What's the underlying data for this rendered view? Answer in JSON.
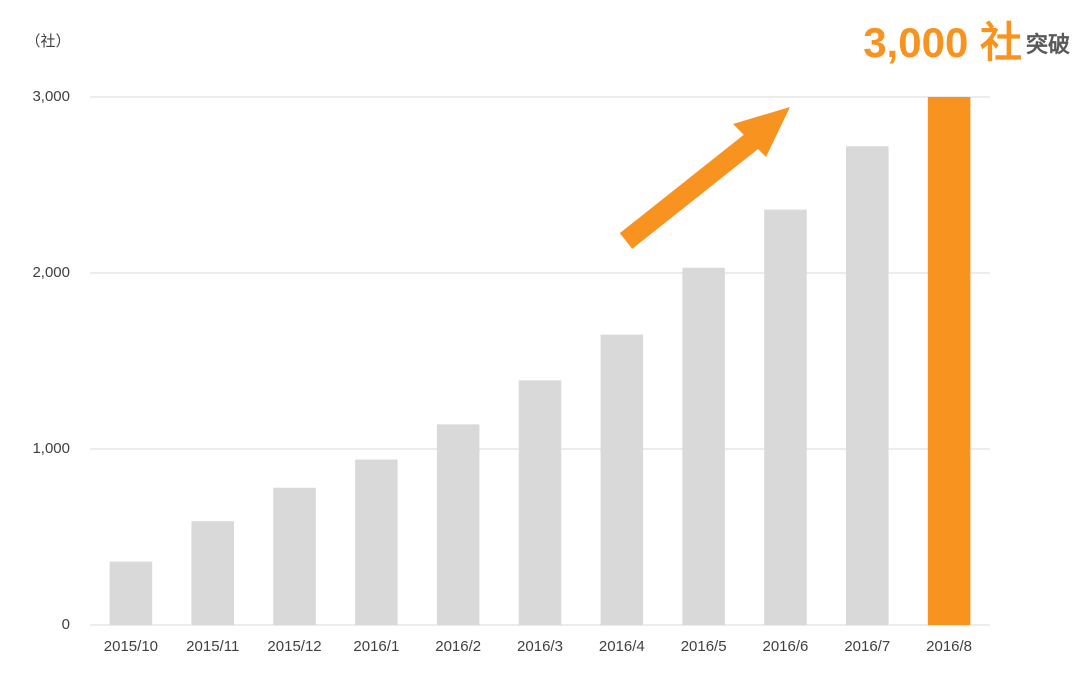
{
  "chart_data": {
    "type": "bar",
    "unit_label": "（社）",
    "annotation": {
      "main": "3,000 社",
      "suffix": "突破",
      "main_color": "#f7931e",
      "suffix_color": "#595959"
    },
    "categories": [
      "2015/10",
      "2015/11",
      "2015/12",
      "2016/1",
      "2016/2",
      "2016/3",
      "2016/4",
      "2016/5",
      "2016/6",
      "2016/7",
      "2016/8"
    ],
    "values": [
      360,
      590,
      780,
      940,
      1140,
      1390,
      1650,
      2030,
      2360,
      2720,
      3000
    ],
    "colors": [
      "#d9d9d9",
      "#d9d9d9",
      "#d9d9d9",
      "#d9d9d9",
      "#d9d9d9",
      "#d9d9d9",
      "#d9d9d9",
      "#d9d9d9",
      "#d9d9d9",
      "#d9d9d9",
      "#f7931e"
    ],
    "ylim": [
      0,
      3000
    ],
    "yticks": [
      0,
      {
        "value": 1000,
        "label": "1,000"
      },
      {
        "value": 2000,
        "label": "2,000"
      },
      {
        "value": 3000,
        "label": "3,000"
      }
    ],
    "grid": true
  }
}
